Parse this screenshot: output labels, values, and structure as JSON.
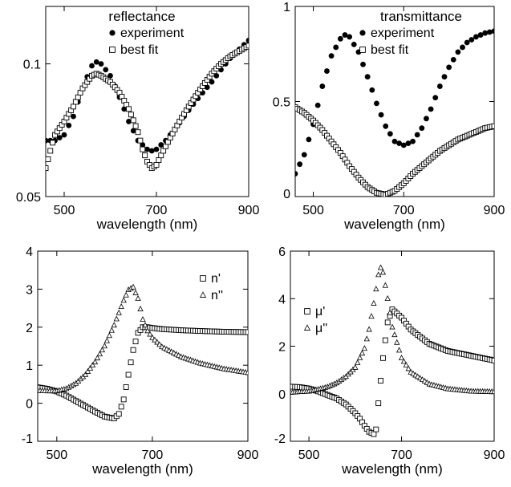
{
  "chart_data": [
    {
      "type": "scatter",
      "title": "reflectance",
      "xlabel": "wavelength (nm)",
      "ylabel": "",
      "xlim": [
        460,
        900
      ],
      "ylim": [
        0.05,
        0.135
      ],
      "y_scale": "log",
      "xticks": [
        500,
        700,
        900
      ],
      "xtick_labels": [
        "500",
        "700",
        "900"
      ],
      "yticks": [
        0.05,
        0.1
      ],
      "ytick_labels": [
        "0.05",
        "0.1"
      ],
      "legend_position": "top-left",
      "series": [
        {
          "name": "experiment",
          "marker": "filled-circle",
          "x": [
            460,
            480,
            500,
            520,
            540,
            560,
            570,
            580,
            600,
            620,
            640,
            660,
            680,
            690,
            700,
            720,
            740,
            760,
            780,
            800,
            820,
            840,
            860,
            880,
            900
          ],
          "y": [
            0.067,
            0.067,
            0.069,
            0.076,
            0.088,
            0.099,
            0.101,
            0.1,
            0.094,
            0.084,
            0.074,
            0.067,
            0.064,
            0.0635,
            0.064,
            0.067,
            0.071,
            0.076,
            0.081,
            0.086,
            0.091,
            0.097,
            0.103,
            0.108,
            0.113
          ]
        },
        {
          "name": "best fit",
          "marker": "open-square",
          "x": [
            460,
            480,
            500,
            520,
            540,
            560,
            570,
            580,
            600,
            620,
            640,
            660,
            670,
            680,
            690,
            700,
            720,
            740,
            760,
            780,
            800,
            820,
            840,
            860,
            880,
            900
          ],
          "y": [
            0.058,
            0.069,
            0.074,
            0.08,
            0.088,
            0.094,
            0.095,
            0.094,
            0.091,
            0.086,
            0.079,
            0.07,
            0.064,
            0.06,
            0.058,
            0.059,
            0.065,
            0.071,
            0.077,
            0.083,
            0.089,
            0.095,
            0.1,
            0.104,
            0.107,
            0.11
          ]
        }
      ]
    },
    {
      "type": "scatter",
      "title": "transmittance",
      "xlabel": "wavelength (nm)",
      "ylabel": "",
      "xlim": [
        460,
        900
      ],
      "ylim": [
        0,
        1
      ],
      "xticks": [
        500,
        700,
        900
      ],
      "xtick_labels": [
        "500",
        "700",
        "900"
      ],
      "yticks": [
        0,
        0.5,
        1
      ],
      "ytick_labels": [
        "0",
        "0.5",
        "1"
      ],
      "legend_position": "top-right",
      "series": [
        {
          "name": "experiment",
          "marker": "filled-circle",
          "x": [
            460,
            480,
            500,
            520,
            540,
            560,
            570,
            580,
            600,
            620,
            640,
            660,
            680,
            700,
            720,
            740,
            760,
            780,
            800,
            820,
            840,
            860,
            880,
            900
          ],
          "y": [
            0.12,
            0.22,
            0.38,
            0.58,
            0.74,
            0.83,
            0.85,
            0.84,
            0.76,
            0.63,
            0.49,
            0.37,
            0.29,
            0.27,
            0.29,
            0.36,
            0.46,
            0.58,
            0.68,
            0.76,
            0.81,
            0.84,
            0.86,
            0.87
          ]
        },
        {
          "name": "best fit",
          "marker": "open-square",
          "x": [
            460,
            480,
            500,
            520,
            540,
            560,
            580,
            600,
            620,
            640,
            660,
            680,
            700,
            720,
            740,
            760,
            780,
            800,
            820,
            840,
            860,
            880,
            900
          ],
          "y": [
            0.47,
            0.44,
            0.4,
            0.35,
            0.29,
            0.23,
            0.16,
            0.1,
            0.05,
            0.02,
            0.01,
            0.03,
            0.07,
            0.12,
            0.16,
            0.2,
            0.24,
            0.27,
            0.3,
            0.32,
            0.34,
            0.36,
            0.37
          ]
        }
      ]
    },
    {
      "type": "scatter",
      "title": "",
      "xlabel": "wavelength (nm)",
      "ylabel": "",
      "xlim": [
        460,
        900
      ],
      "ylim": [
        -1,
        4
      ],
      "xticks": [
        500,
        700,
        900
      ],
      "xtick_labels": [
        "500",
        "700",
        "900"
      ],
      "yticks": [
        -1,
        0,
        1,
        2,
        3,
        4
      ],
      "ytick_labels": [
        "-1",
        "0",
        "1",
        "2",
        "3",
        "4"
      ],
      "legend_position": "top-right",
      "series": [
        {
          "name": "n'",
          "marker": "open-square",
          "x": [
            460,
            480,
            500,
            520,
            540,
            560,
            580,
            600,
            620,
            630,
            640,
            650,
            660,
            670,
            680,
            690,
            700,
            720,
            760,
            800,
            850,
            900
          ],
          "y": [
            0.42,
            0.38,
            0.31,
            0.2,
            0.06,
            -0.08,
            -0.22,
            -0.35,
            -0.4,
            -0.28,
            0.1,
            0.75,
            1.4,
            1.85,
            2.0,
            2.0,
            1.98,
            1.95,
            1.92,
            1.9,
            1.88,
            1.87
          ]
        },
        {
          "name": "n''",
          "marker": "open-triangle",
          "x": [
            460,
            480,
            500,
            520,
            540,
            560,
            580,
            600,
            620,
            640,
            650,
            660,
            670,
            680,
            690,
            700,
            720,
            760,
            800,
            850,
            900
          ],
          "y": [
            0.33,
            0.32,
            0.32,
            0.38,
            0.52,
            0.75,
            1.08,
            1.5,
            2.05,
            2.7,
            2.98,
            3.05,
            2.75,
            2.2,
            1.9,
            1.72,
            1.48,
            1.22,
            1.05,
            0.9,
            0.8
          ]
        }
      ]
    },
    {
      "type": "scatter",
      "title": "",
      "xlabel": "wavelength (nm)",
      "ylabel": "",
      "xlim": [
        460,
        900
      ],
      "ylim": [
        -2,
        6
      ],
      "xticks": [
        500,
        700,
        900
      ],
      "xtick_labels": [
        "500",
        "700",
        "900"
      ],
      "yticks": [
        -2,
        0,
        2,
        4,
        6
      ],
      "ytick_labels": [
        "-2",
        "0",
        "2",
        "4",
        "6"
      ],
      "legend_position": "left",
      "series": [
        {
          "name": "μ'",
          "marker": "open-square",
          "x": [
            460,
            480,
            500,
            520,
            540,
            560,
            580,
            600,
            610,
            620,
            630,
            640,
            645,
            650,
            660,
            670,
            680,
            700,
            720,
            760,
            800,
            850,
            900
          ],
          "y": [
            0.3,
            0.28,
            0.22,
            0.1,
            -0.05,
            -0.2,
            -0.45,
            -0.82,
            -1.05,
            -1.35,
            -1.6,
            -1.7,
            -1.5,
            -0.4,
            1.5,
            3.0,
            3.55,
            3.2,
            2.7,
            2.1,
            1.8,
            1.6,
            1.4
          ]
        },
        {
          "name": "μ''",
          "marker": "open-triangle",
          "x": [
            460,
            480,
            500,
            520,
            540,
            560,
            580,
            600,
            620,
            630,
            640,
            650,
            655,
            660,
            670,
            680,
            700,
            720,
            760,
            800,
            850,
            900
          ],
          "y": [
            0.05,
            0.08,
            0.1,
            0.18,
            0.28,
            0.45,
            0.72,
            1.1,
            1.9,
            2.7,
            3.8,
            5.0,
            5.3,
            5.1,
            4.0,
            2.8,
            1.5,
            0.9,
            0.4,
            0.2,
            0.1,
            0.08
          ]
        }
      ]
    }
  ]
}
